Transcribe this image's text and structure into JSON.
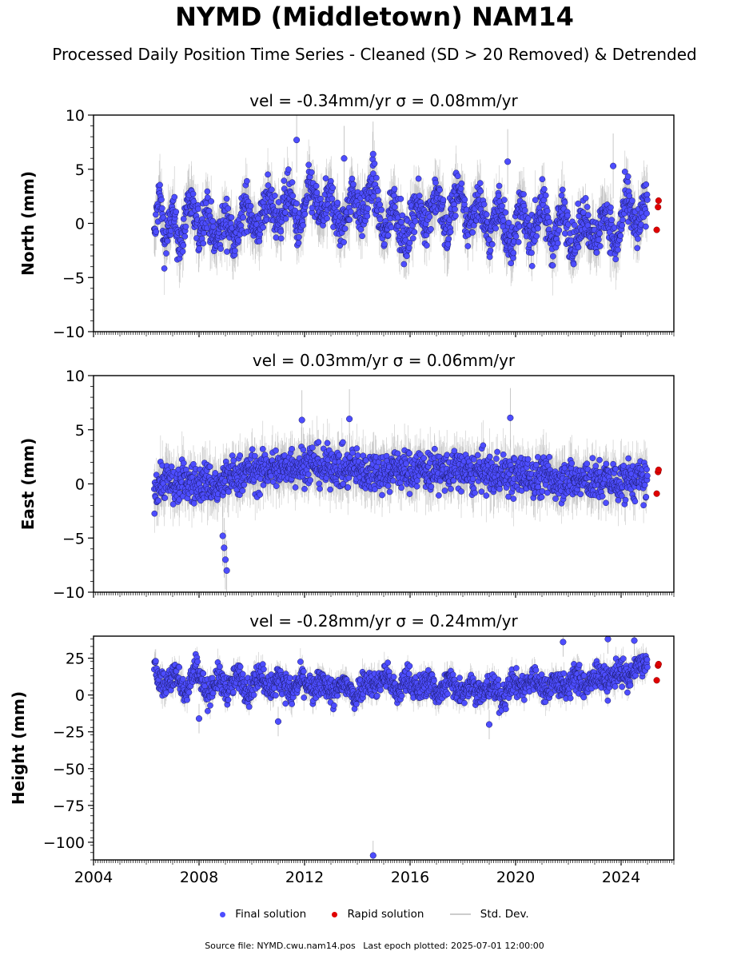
{
  "title": "NYMD (Middletown) NAM14",
  "subtitle": "Processed Daily Position Time Series - Cleaned (SD > 20 Removed) & Detrended",
  "colors": {
    "final_fill": "#4d4dff",
    "final_edge": "#1a1a66",
    "rapid_fill": "#e00000",
    "std_dev": "#bbbbbb"
  },
  "legend": {
    "final": "Final solution",
    "rapid": "Rapid solution",
    "std": "Std. Dev."
  },
  "footer": {
    "source": "Source file: NYMD.cwu.nam14.pos",
    "last_epoch": "Last epoch plotted: 2025-07-01 12:00:00"
  },
  "chart_data": [
    {
      "type": "scatter",
      "title": "vel = -0.34mm/yr   σ = 0.08mm/yr",
      "ylabel": "North (mm)",
      "xlim": [
        2004,
        2026
      ],
      "ylim": [
        -10,
        10
      ],
      "yticks": [
        -10,
        -5,
        0,
        5,
        10
      ],
      "ytick_labels": [
        "−10",
        "−5",
        "0",
        "5",
        "10"
      ],
      "grid": false,
      "x_start": 2006.3,
      "x_end": 2025.0,
      "series": [
        {
          "name": "Final solution",
          "x": [
            2006.3,
            2006.5,
            2006.7,
            2007.0,
            2007.3,
            2007.6,
            2008.0,
            2008.3,
            2008.6,
            2009.0,
            2009.4,
            2009.8,
            2010.2,
            2010.6,
            2011.0,
            2011.4,
            2011.8,
            2012.2,
            2012.6,
            2013.0,
            2013.4,
            2013.8,
            2014.2,
            2014.6,
            2015.0,
            2015.4,
            2015.8,
            2016.2,
            2016.6,
            2017.0,
            2017.4,
            2017.8,
            2018.2,
            2018.6,
            2019.0,
            2019.4,
            2019.8,
            2020.2,
            2020.6,
            2021.0,
            2021.4,
            2021.8,
            2022.2,
            2022.6,
            2023.0,
            2023.4,
            2023.8,
            2024.2,
            2024.6,
            2024.9
          ],
          "y": [
            -1.5,
            3.0,
            -2.0,
            1.0,
            -2.5,
            2.5,
            -1.0,
            1.5,
            -2.0,
            0.5,
            -1.5,
            2.0,
            -1.0,
            2.5,
            0.0,
            3.0,
            -1.0,
            3.5,
            0.5,
            2.5,
            -1.0,
            3.0,
            0.5,
            4.0,
            -1.5,
            2.5,
            -2.5,
            2.0,
            0.0,
            3.0,
            -1.0,
            3.5,
            -0.5,
            2.5,
            -1.5,
            2.0,
            -2.5,
            1.5,
            -1.5,
            2.0,
            -2.0,
            1.5,
            -2.5,
            1.0,
            -2.0,
            1.5,
            -2.5,
            2.5,
            -1.0,
            2.0
          ],
          "outliers_x": [
            2011.7,
            2013.5,
            2014.6,
            2019.7,
            2023.7
          ],
          "outliers_y": [
            7.7,
            6.0,
            6.4,
            5.7,
            5.3
          ]
        },
        {
          "name": "Rapid solution",
          "x": [
            2025.35,
            2025.4,
            2025.42
          ],
          "y": [
            -0.6,
            1.5,
            2.1
          ]
        }
      ]
    },
    {
      "type": "scatter",
      "title": "vel = 0.03mm/yr   σ = 0.06mm/yr",
      "ylabel": "East (mm)",
      "xlim": [
        2004,
        2026
      ],
      "ylim": [
        -10,
        10
      ],
      "yticks": [
        -10,
        -5,
        0,
        5,
        10
      ],
      "ytick_labels": [
        "−10",
        "−5",
        "0",
        "5",
        "10"
      ],
      "grid": false,
      "x_start": 2006.3,
      "x_end": 2025.0,
      "series": [
        {
          "name": "Final solution",
          "x": [
            2006.3,
            2006.7,
            2007.1,
            2007.5,
            2007.9,
            2008.3,
            2008.7,
            2009.1,
            2009.5,
            2009.9,
            2010.3,
            2010.7,
            2011.1,
            2011.5,
            2011.9,
            2012.3,
            2012.7,
            2013.1,
            2013.5,
            2013.9,
            2014.3,
            2014.7,
            2015.1,
            2015.5,
            2015.9,
            2016.3,
            2016.7,
            2017.1,
            2017.5,
            2017.9,
            2018.3,
            2018.7,
            2019.1,
            2019.5,
            2019.9,
            2020.3,
            2020.7,
            2021.1,
            2021.5,
            2021.9,
            2022.3,
            2022.7,
            2023.1,
            2023.5,
            2023.9,
            2024.3,
            2024.7,
            2024.9
          ],
          "y": [
            -0.5,
            0.5,
            -0.3,
            0.4,
            -0.2,
            0.3,
            -0.5,
            0.6,
            0.8,
            1.2,
            1.0,
            1.5,
            1.3,
            1.8,
            1.6,
            2.0,
            1.4,
            1.8,
            1.2,
            1.6,
            0.9,
            1.4,
            1.0,
            1.6,
            1.1,
            1.5,
            1.2,
            1.3,
            1.0,
            1.4,
            0.8,
            1.2,
            0.7,
            1.1,
            0.6,
            0.9,
            0.4,
            0.8,
            0.3,
            0.6,
            0.2,
            0.5,
            0.1,
            0.4,
            0.0,
            0.5,
            0.2,
            0.3
          ],
          "outliers_x": [
            2008.9,
            2008.95,
            2009.0,
            2009.05,
            2011.9,
            2013.7,
            2019.8
          ],
          "outliers_y": [
            -4.8,
            -5.9,
            -7.0,
            -8.0,
            5.9,
            6.0,
            6.1
          ]
        },
        {
          "name": "Rapid solution",
          "x": [
            2025.35,
            2025.4,
            2025.42
          ],
          "y": [
            -0.9,
            1.1,
            1.3
          ]
        }
      ]
    },
    {
      "type": "scatter",
      "title": "vel = -0.28mm/yr   σ = 0.24mm/yr",
      "ylabel": "Height (mm)",
      "xlim": [
        2004,
        2026
      ],
      "ylim": [
        -112,
        40
      ],
      "yticks": [
        -100,
        -75,
        -50,
        -25,
        0,
        25
      ],
      "ytick_labels": [
        "−100",
        "−75",
        "−50",
        "−25",
        "0",
        "25"
      ],
      "xticks": [
        2004,
        2008,
        2012,
        2016,
        2020,
        2024
      ],
      "xtick_labels": [
        "2004",
        "2008",
        "2012",
        "2016",
        "2020",
        "2024"
      ],
      "grid": false,
      "x_start": 2006.3,
      "x_end": 2025.0,
      "series": [
        {
          "name": "Final solution",
          "x": [
            2006.3,
            2006.7,
            2007.1,
            2007.5,
            2007.9,
            2008.3,
            2008.7,
            2009.1,
            2009.5,
            2009.9,
            2010.3,
            2010.7,
            2011.1,
            2011.5,
            2011.9,
            2012.3,
            2012.7,
            2013.1,
            2013.5,
            2013.9,
            2014.3,
            2014.7,
            2015.1,
            2015.5,
            2015.9,
            2016.3,
            2016.7,
            2017.1,
            2017.5,
            2017.9,
            2018.3,
            2018.7,
            2019.1,
            2019.5,
            2019.9,
            2020.3,
            2020.7,
            2021.1,
            2021.5,
            2021.9,
            2022.3,
            2022.7,
            2023.1,
            2023.5,
            2023.9,
            2024.3,
            2024.7,
            2024.9
          ],
          "y": [
            18,
            5,
            15,
            2,
            20,
            0,
            12,
            3,
            14,
            1,
            16,
            4,
            13,
            0,
            12,
            2,
            10,
            0,
            9,
            -2,
            11,
            6,
            15,
            0,
            12,
            3,
            10,
            0,
            11,
            2,
            8,
            0,
            7,
            -3,
            9,
            5,
            12,
            3,
            10,
            4,
            13,
            5,
            15,
            8,
            18,
            10,
            22,
            20
          ],
          "outliers_x": [
            2008.0,
            2011.0,
            2014.6,
            2019.0,
            2021.8,
            2023.5,
            2024.5
          ],
          "outliers_y": [
            -16,
            -18,
            -109,
            -20,
            36,
            38,
            37
          ]
        },
        {
          "name": "Rapid solution",
          "x": [
            2025.35,
            2025.4,
            2025.42
          ],
          "y": [
            10,
            20,
            21
          ]
        }
      ]
    }
  ]
}
